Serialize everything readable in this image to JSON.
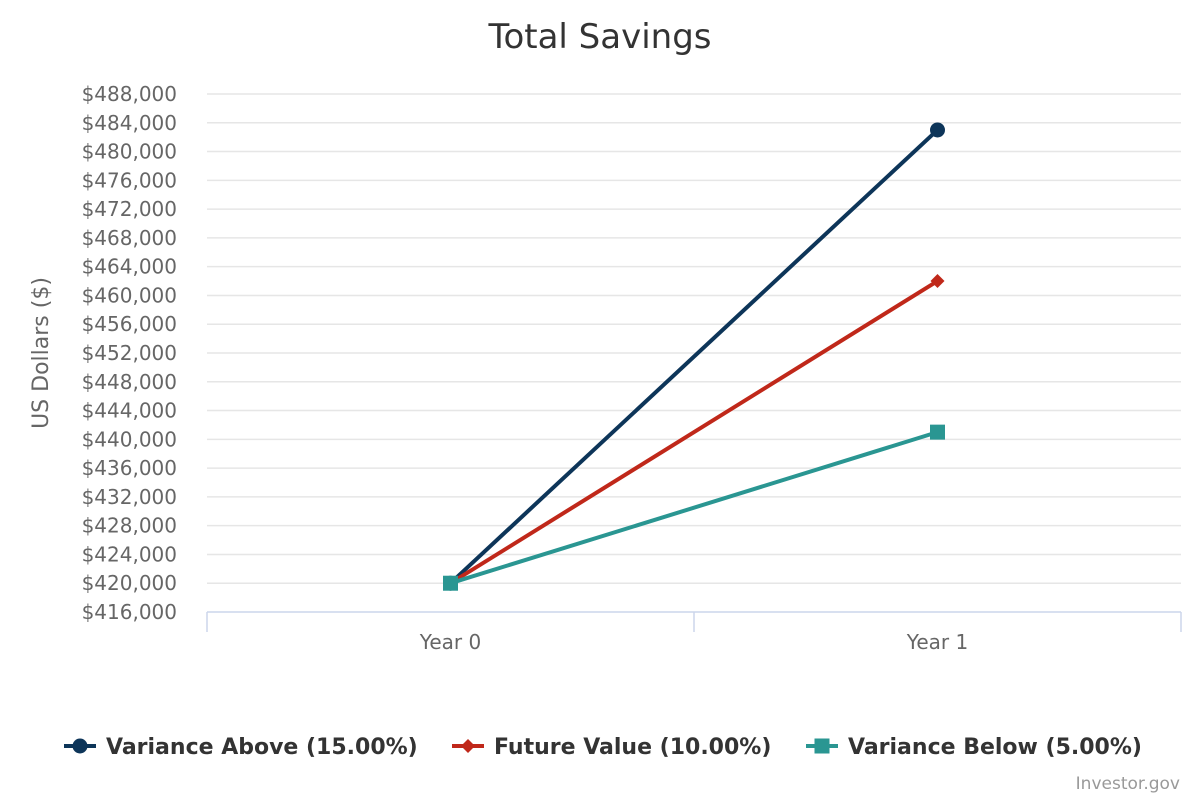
{
  "chart_data": {
    "type": "line",
    "title": "Total Savings",
    "ylabel": "US Dollars ($)",
    "xlabel": "",
    "categories": [
      "Year 0",
      "Year 1"
    ],
    "ylim": [
      416000,
      488000
    ],
    "ytick_step": 4000,
    "ytick_labels": [
      "$416,000",
      "$420,000",
      "$424,000",
      "$428,000",
      "$432,000",
      "$436,000",
      "$440,000",
      "$444,000",
      "$448,000",
      "$452,000",
      "$456,000",
      "$460,000",
      "$464,000",
      "$468,000",
      "$472,000",
      "$476,000",
      "$480,000",
      "$484,000",
      "$488,000"
    ],
    "grid": true,
    "legend_position": "bottom",
    "series": [
      {
        "name": "Variance Above (15.00%)",
        "values": [
          420000,
          483000
        ],
        "color": "#0d3559",
        "marker": "circle"
      },
      {
        "name": "Future Value (10.00%)",
        "values": [
          420000,
          462000
        ],
        "color": "#c0281a",
        "marker": "diamond"
      },
      {
        "name": "Variance Below (5.00%)",
        "values": [
          420000,
          441000
        ],
        "color": "#2a9692",
        "marker": "square"
      }
    ]
  },
  "credit": "Investor.gov"
}
